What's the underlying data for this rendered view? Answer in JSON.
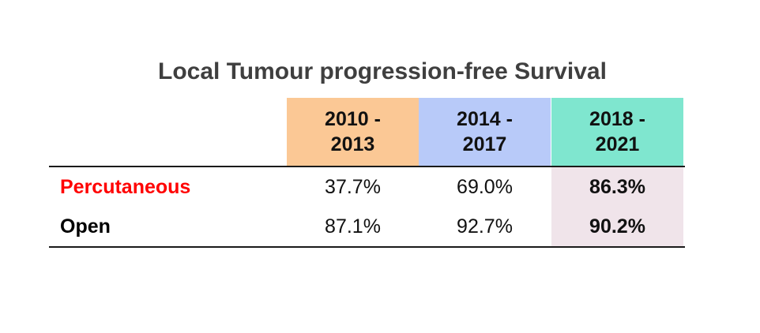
{
  "chart_data": {
    "type": "table",
    "title": "Local Tumour progression-free Survival",
    "columns": [
      "2010 -\n2013",
      "2014 -\n2017",
      "2018 -\n2021"
    ],
    "rows": [
      {
        "label": "Percutaneous",
        "values": [
          "37.7%",
          "69.0%",
          "86.3%"
        ]
      },
      {
        "label": "Open",
        "values": [
          "87.1%",
          "92.7%",
          "90.2%"
        ]
      }
    ],
    "numeric_values": {
      "Percutaneous": [
        37.7,
        69.0,
        86.3
      ],
      "Open": [
        87.1,
        92.7,
        90.2
      ]
    },
    "highlighted_column": 2
  },
  "colors": {
    "header_backgrounds": [
      "#fbc895",
      "#b8caf9",
      "#7fe6cf"
    ],
    "highlight_column_bg": "#f0e4ea",
    "percutaneous_label": "#ff0000",
    "open_label": "#000000",
    "title": "#3f3f3f"
  }
}
